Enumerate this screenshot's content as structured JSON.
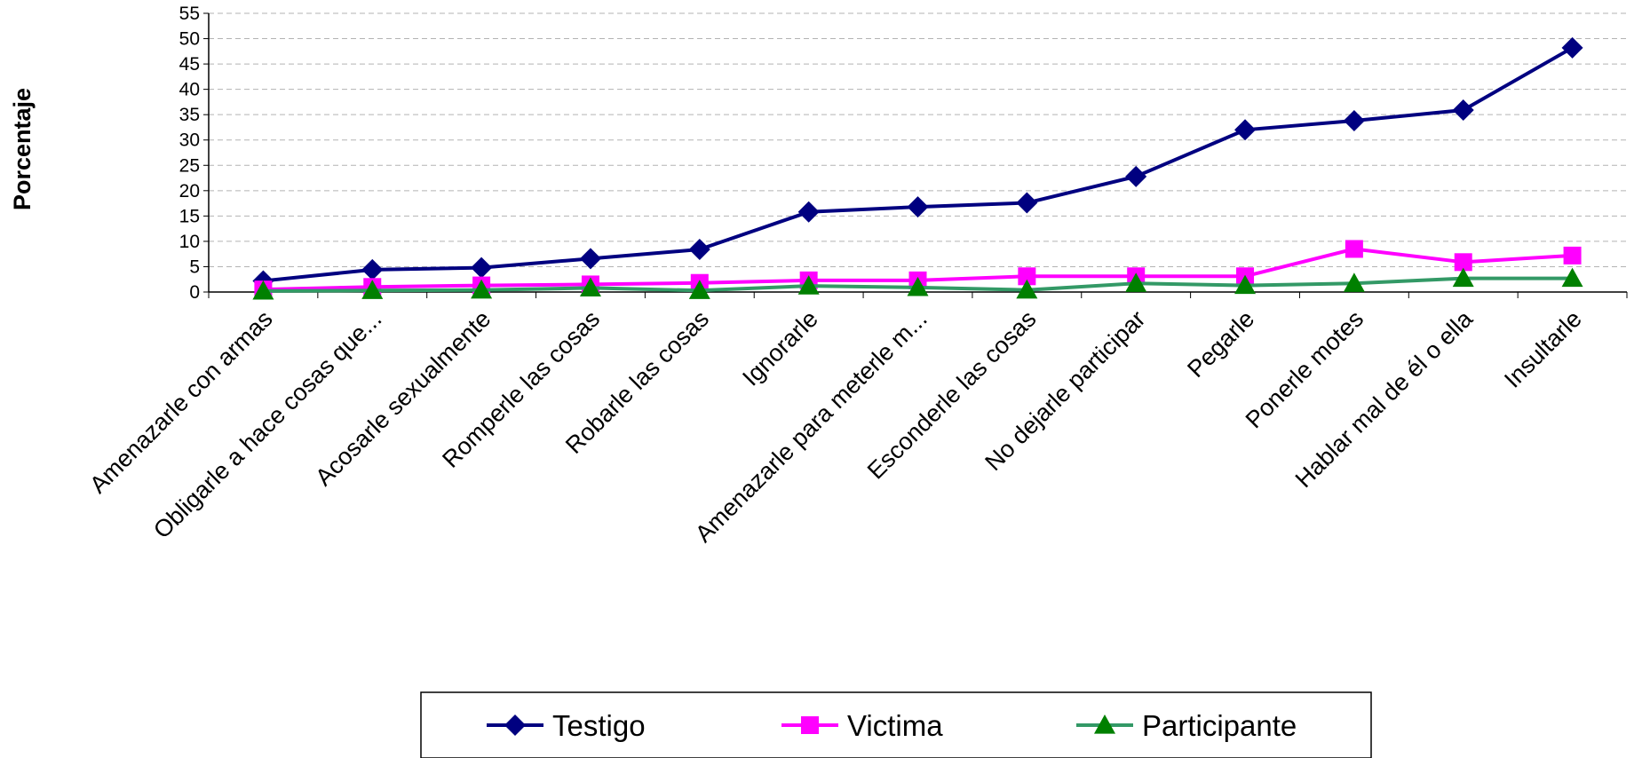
{
  "chart_data": {
    "type": "line",
    "title": "",
    "xlabel": "",
    "ylabel": "Porcentaje",
    "ylim": [
      0,
      55
    ],
    "yticks": [
      "0",
      "5",
      "10",
      "15",
      "20",
      "25",
      "30",
      "35",
      "40",
      "45",
      "50",
      "55"
    ],
    "grid": true,
    "legend_position": "bottom",
    "categories": [
      "Amenazarle con armas",
      "Obligarle a hace cosas que...",
      "Acosarle sexualmente",
      "Romperle las cosas",
      "Robarle las cosas",
      "Ignorarle",
      "Amenazarle para meterle m...",
      "Esconderle las cosas",
      "No dejarle participar",
      "Pegarle",
      "Ponerle motes",
      "Hablar mal de él o ella",
      "Insultarle"
    ],
    "series": [
      {
        "name": "Testigo",
        "color": "#000080",
        "marker": "diamond",
        "values": [
          2.2,
          4.4,
          4.8,
          6.6,
          8.4,
          15.8,
          16.8,
          17.6,
          22.8,
          32.0,
          33.8,
          35.9,
          48.2
        ]
      },
      {
        "name": "Victima",
        "color": "#ff00ff",
        "marker": "square",
        "values": [
          0.5,
          1.0,
          1.3,
          1.5,
          1.8,
          2.3,
          2.3,
          3.1,
          3.1,
          3.1,
          8.5,
          5.9,
          7.2
        ]
      },
      {
        "name": "Participante",
        "color": "#339966",
        "marker_color": "#008000",
        "marker": "triangle",
        "values": [
          0.2,
          0.3,
          0.4,
          0.8,
          0.3,
          1.2,
          0.9,
          0.4,
          1.7,
          1.3,
          1.7,
          2.7,
          2.7
        ]
      }
    ]
  }
}
